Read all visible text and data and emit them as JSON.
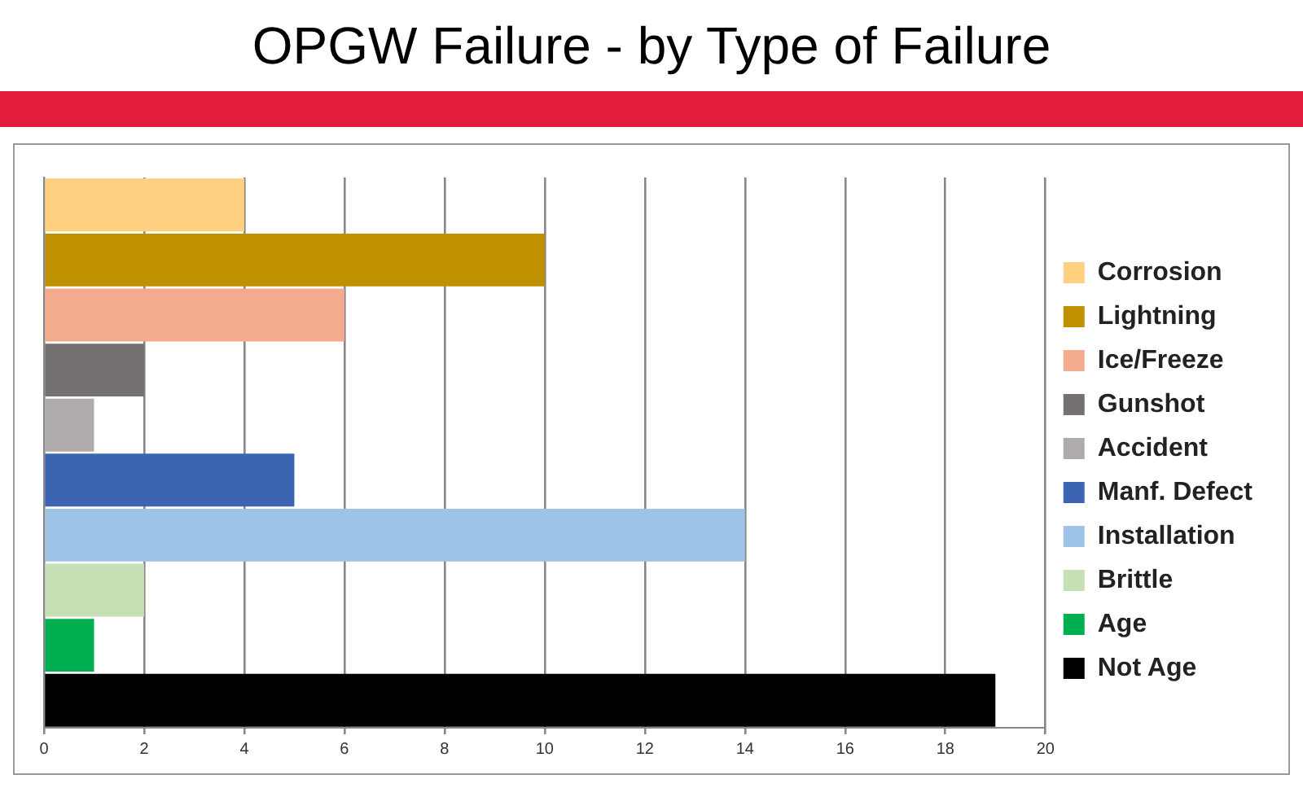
{
  "chart_data": {
    "type": "bar",
    "title": "OPGW Failure - by Type of Failure",
    "orientation": "horizontal",
    "categories": [
      null,
      null,
      null,
      null,
      null,
      null,
      null,
      null,
      null,
      null
    ],
    "series": [
      {
        "name": "Corrosion",
        "color": "#ffd080",
        "values": [
          4,
          null,
          null,
          null,
          null,
          null,
          null,
          null,
          null,
          null
        ]
      },
      {
        "name": "Lightning",
        "color": "#bf9000",
        "values": [
          null,
          10,
          null,
          null,
          null,
          null,
          null,
          null,
          null,
          null
        ]
      },
      {
        "name": "Ice/Freeze",
        "color": "#f4aa8c",
        "values": [
          null,
          null,
          6,
          null,
          null,
          null,
          null,
          null,
          null,
          null
        ]
      },
      {
        "name": "Gunshot",
        "color": "#767171",
        "values": [
          null,
          null,
          null,
          2,
          null,
          null,
          null,
          null,
          null,
          null
        ]
      },
      {
        "name": "Accident",
        "color": "#afabab",
        "values": [
          null,
          null,
          null,
          null,
          1,
          null,
          null,
          null,
          null,
          null
        ]
      },
      {
        "name": "Manf. Defect",
        "color": "#3c64b0",
        "values": [
          null,
          null,
          null,
          null,
          null,
          5,
          null,
          null,
          null,
          null
        ]
      },
      {
        "name": "Installation",
        "color": "#9dc3e6",
        "values": [
          null,
          null,
          null,
          null,
          null,
          null,
          14,
          null,
          null,
          null
        ]
      },
      {
        "name": "Brittle",
        "color": "#c5e0b4",
        "values": [
          null,
          null,
          null,
          null,
          null,
          null,
          null,
          2,
          null,
          null
        ]
      },
      {
        "name": "Age",
        "color": "#00b050",
        "values": [
          null,
          null,
          null,
          null,
          null,
          null,
          null,
          null,
          1,
          null
        ]
      },
      {
        "name": "Not Age",
        "color": "#000000",
        "values": [
          null,
          null,
          null,
          null,
          null,
          null,
          null,
          null,
          null,
          19
        ]
      }
    ],
    "xlim": [
      0,
      20
    ],
    "xticks": [
      0,
      2,
      4,
      6,
      8,
      10,
      12,
      14,
      16,
      18,
      20
    ],
    "grid": "x",
    "legend": "right"
  }
}
